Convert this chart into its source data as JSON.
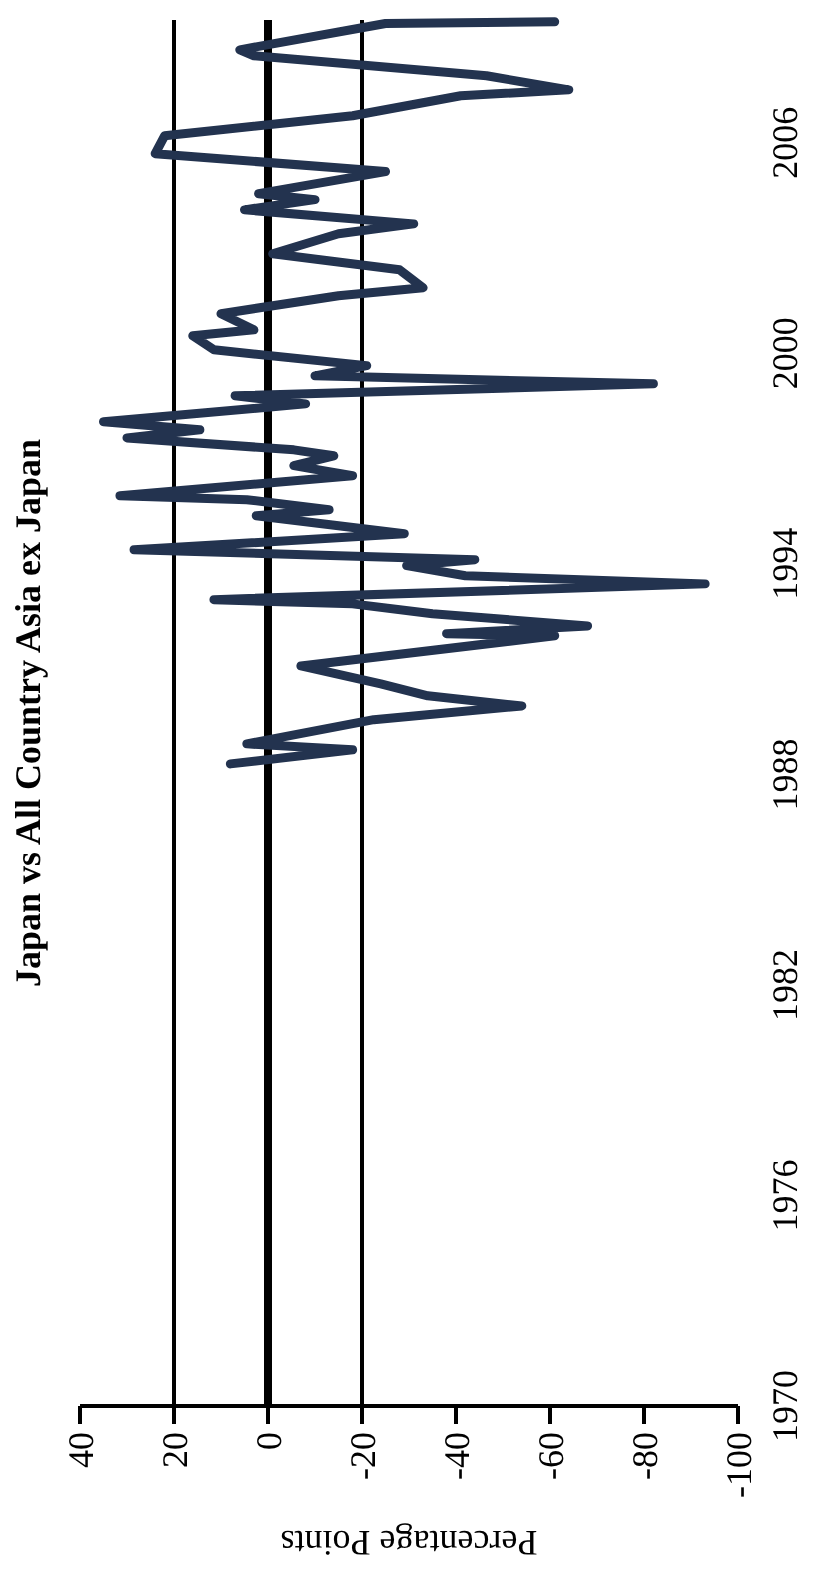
{
  "chart_data": {
    "type": "line",
    "title": "Japan vs All Country Asia ex Japan",
    "xlabel": "Percentage Points",
    "x": [
      8,
      -18,
      4.5,
      -22.5,
      -54,
      -34,
      -24,
      -7,
      -61,
      -38,
      -68,
      -35,
      -18,
      11.5,
      -93,
      -42,
      -29.5,
      -44,
      28.5,
      -29,
      2.5,
      -13,
      4.5,
      31.5,
      -18,
      -5.5,
      -14,
      -5.5,
      30,
      14.5,
      35,
      -8,
      7,
      -82,
      -10,
      -21,
      11.5,
      16,
      3,
      10,
      -15,
      -33,
      -28,
      -1,
      -15,
      -31,
      5,
      -10,
      2,
      -25,
      24,
      22,
      -18,
      -41,
      -64,
      -46.5,
      3,
      6,
      -25,
      -61
    ],
    "series": [
      {
        "color": "#23334f",
        "values": [
          1988.3,
          1988.7,
          1988.87,
          1989.56,
          1989.95,
          1990.24,
          1990.58,
          1991.09,
          1991.95,
          1992.01,
          1992.23,
          1992.58,
          1992.86,
          1992.98,
          1993.43,
          1993.66,
          1993.95,
          1994.12,
          1994.4,
          1994.86,
          1995.37,
          1995.54,
          1995.83,
          1995.94,
          1996.51,
          1996.8,
          1997.08,
          1997.25,
          1997.59,
          1997.82,
          1998.05,
          1998.56,
          1998.79,
          1999.13,
          1999.36,
          1999.65,
          2000.1,
          2000.5,
          2000.67,
          2001.13,
          2001.64,
          2001.87,
          2002.38,
          2002.84,
          2003.41,
          2003.69,
          2004.09,
          2004.38,
          2004.55,
          2005.18,
          2005.69,
          2006.2,
          2006.77,
          2007.34,
          2007.51,
          2007.91,
          2008.48,
          2008.65,
          2009.4,
          2009.45
        ]
      }
    ],
    "xlim": [
      40,
      -100
    ],
    "xticks": [
      40,
      20,
      0,
      -20,
      -40,
      -60,
      -80,
      -100
    ],
    "ylim": [
      1970,
      2009.5
    ],
    "yticks": [
      1970,
      1976,
      1982,
      1988,
      1994,
      2000,
      2006
    ],
    "ref_lines": [
      {
        "axis": "x",
        "value": 20,
        "color": "#000000"
      },
      {
        "axis": "x",
        "value": 0,
        "color": "#000000"
      },
      {
        "axis": "x",
        "value": -20,
        "color": "#000000"
      }
    ]
  }
}
